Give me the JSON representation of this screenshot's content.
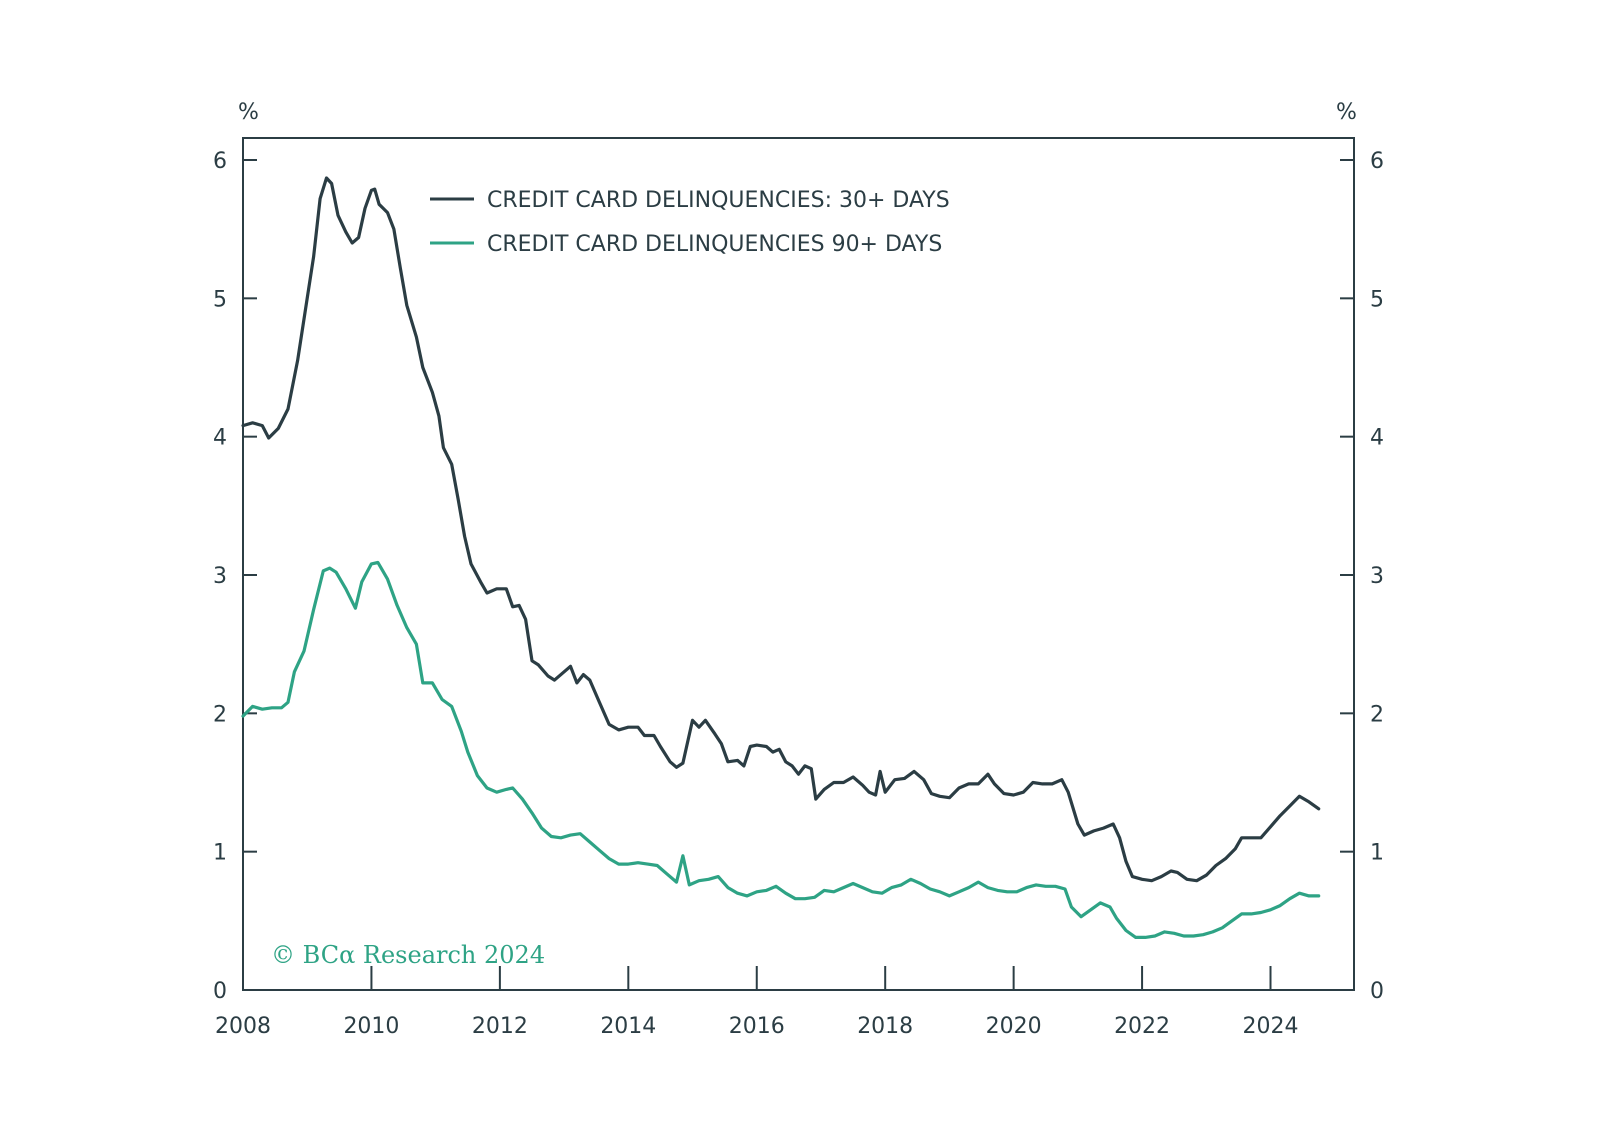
{
  "chart_data": {
    "type": "line",
    "title": "",
    "xlabel": "",
    "ylabel_left": "%",
    "ylabel_right": "%",
    "xlim": [
      2008,
      2025.3
    ],
    "ylim": [
      0,
      6
    ],
    "x_ticks": [
      "2008",
      "2010",
      "2012",
      "2014",
      "2016",
      "2018",
      "2020",
      "2022",
      "2024"
    ],
    "y_ticks": [
      "0",
      "1",
      "2",
      "3",
      "4",
      "5",
      "6"
    ],
    "grid": false,
    "legend_position": "top-left",
    "series": [
      {
        "name": "CREDIT CARD DELINQUENCIES: 30+ DAYS",
        "color": "#2b3d44",
        "points": [
          [
            2008.0,
            4.08
          ],
          [
            2008.15,
            4.1
          ],
          [
            2008.3,
            4.08
          ],
          [
            2008.4,
            3.99
          ],
          [
            2008.55,
            4.06
          ],
          [
            2008.7,
            4.2
          ],
          [
            2008.85,
            4.55
          ],
          [
            2009.0,
            5.0
          ],
          [
            2009.1,
            5.3
          ],
          [
            2009.2,
            5.72
          ],
          [
            2009.3,
            5.87
          ],
          [
            2009.38,
            5.83
          ],
          [
            2009.48,
            5.6
          ],
          [
            2009.6,
            5.48
          ],
          [
            2009.7,
            5.4
          ],
          [
            2009.8,
            5.44
          ],
          [
            2009.9,
            5.65
          ],
          [
            2010.0,
            5.78
          ],
          [
            2010.05,
            5.79
          ],
          [
            2010.12,
            5.68
          ],
          [
            2010.25,
            5.62
          ],
          [
            2010.35,
            5.5
          ],
          [
            2010.45,
            5.22
          ],
          [
            2010.55,
            4.95
          ],
          [
            2010.7,
            4.72
          ],
          [
            2010.8,
            4.5
          ],
          [
            2010.95,
            4.32
          ],
          [
            2011.05,
            4.15
          ],
          [
            2011.12,
            3.92
          ],
          [
            2011.25,
            3.8
          ],
          [
            2011.35,
            3.55
          ],
          [
            2011.45,
            3.28
          ],
          [
            2011.55,
            3.08
          ],
          [
            2011.7,
            2.95
          ],
          [
            2011.8,
            2.87
          ],
          [
            2011.95,
            2.9
          ],
          [
            2012.1,
            2.9
          ],
          [
            2012.2,
            2.77
          ],
          [
            2012.3,
            2.78
          ],
          [
            2012.4,
            2.68
          ],
          [
            2012.5,
            2.38
          ],
          [
            2012.6,
            2.35
          ],
          [
            2012.75,
            2.27
          ],
          [
            2012.85,
            2.24
          ],
          [
            2013.0,
            2.3
          ],
          [
            2013.1,
            2.34
          ],
          [
            2013.2,
            2.22
          ],
          [
            2013.3,
            2.28
          ],
          [
            2013.4,
            2.24
          ],
          [
            2013.55,
            2.08
          ],
          [
            2013.7,
            1.92
          ],
          [
            2013.85,
            1.88
          ],
          [
            2014.0,
            1.9
          ],
          [
            2014.15,
            1.9
          ],
          [
            2014.25,
            1.84
          ],
          [
            2014.4,
            1.84
          ],
          [
            2014.5,
            1.76
          ],
          [
            2014.65,
            1.65
          ],
          [
            2014.75,
            1.61
          ],
          [
            2014.85,
            1.64
          ],
          [
            2015.0,
            1.95
          ],
          [
            2015.1,
            1.9
          ],
          [
            2015.2,
            1.95
          ],
          [
            2015.35,
            1.85
          ],
          [
            2015.45,
            1.78
          ],
          [
            2015.55,
            1.65
          ],
          [
            2015.7,
            1.66
          ],
          [
            2015.8,
            1.62
          ],
          [
            2015.9,
            1.76
          ],
          [
            2016.0,
            1.77
          ],
          [
            2016.15,
            1.76
          ],
          [
            2016.25,
            1.72
          ],
          [
            2016.35,
            1.74
          ],
          [
            2016.45,
            1.65
          ],
          [
            2016.55,
            1.62
          ],
          [
            2016.65,
            1.56
          ],
          [
            2016.75,
            1.62
          ],
          [
            2016.85,
            1.6
          ],
          [
            2016.92,
            1.38
          ],
          [
            2017.05,
            1.45
          ],
          [
            2017.2,
            1.5
          ],
          [
            2017.35,
            1.5
          ],
          [
            2017.5,
            1.54
          ],
          [
            2017.65,
            1.48
          ],
          [
            2017.75,
            1.43
          ],
          [
            2017.85,
            1.41
          ],
          [
            2017.92,
            1.58
          ],
          [
            2018.0,
            1.43
          ],
          [
            2018.15,
            1.52
          ],
          [
            2018.3,
            1.53
          ],
          [
            2018.45,
            1.58
          ],
          [
            2018.6,
            1.52
          ],
          [
            2018.72,
            1.42
          ],
          [
            2018.85,
            1.4
          ],
          [
            2019.0,
            1.39
          ],
          [
            2019.15,
            1.46
          ],
          [
            2019.3,
            1.49
          ],
          [
            2019.45,
            1.49
          ],
          [
            2019.6,
            1.56
          ],
          [
            2019.7,
            1.49
          ],
          [
            2019.85,
            1.42
          ],
          [
            2020.0,
            1.41
          ],
          [
            2020.15,
            1.43
          ],
          [
            2020.3,
            1.5
          ],
          [
            2020.45,
            1.49
          ],
          [
            2020.6,
            1.49
          ],
          [
            2020.75,
            1.52
          ],
          [
            2020.85,
            1.43
          ],
          [
            2021.0,
            1.2
          ],
          [
            2021.1,
            1.12
          ],
          [
            2021.25,
            1.15
          ],
          [
            2021.4,
            1.17
          ],
          [
            2021.55,
            1.2
          ],
          [
            2021.65,
            1.1
          ],
          [
            2021.75,
            0.93
          ],
          [
            2021.85,
            0.82
          ],
          [
            2022.0,
            0.8
          ],
          [
            2022.15,
            0.79
          ],
          [
            2022.3,
            0.82
          ],
          [
            2022.45,
            0.86
          ],
          [
            2022.55,
            0.85
          ],
          [
            2022.7,
            0.8
          ],
          [
            2022.85,
            0.79
          ],
          [
            2023.0,
            0.83
          ],
          [
            2023.15,
            0.9
          ],
          [
            2023.3,
            0.95
          ],
          [
            2023.45,
            1.02
          ],
          [
            2023.55,
            1.1
          ],
          [
            2023.7,
            1.1
          ],
          [
            2023.85,
            1.1
          ],
          [
            2024.0,
            1.18
          ],
          [
            2024.15,
            1.26
          ],
          [
            2024.3,
            1.33
          ],
          [
            2024.45,
            1.4
          ],
          [
            2024.6,
            1.36
          ],
          [
            2024.75,
            1.31
          ]
        ]
      },
      {
        "name": "CREDIT CARD DELINQUENCIES 90+ DAYS",
        "color": "#2ea385",
        "points": [
          [
            2008.0,
            1.98
          ],
          [
            2008.15,
            2.05
          ],
          [
            2008.3,
            2.03
          ],
          [
            2008.45,
            2.04
          ],
          [
            2008.6,
            2.04
          ],
          [
            2008.7,
            2.08
          ],
          [
            2008.8,
            2.3
          ],
          [
            2008.95,
            2.45
          ],
          [
            2009.1,
            2.75
          ],
          [
            2009.25,
            3.03
          ],
          [
            2009.35,
            3.05
          ],
          [
            2009.45,
            3.02
          ],
          [
            2009.6,
            2.9
          ],
          [
            2009.75,
            2.76
          ],
          [
            2009.85,
            2.95
          ],
          [
            2010.0,
            3.08
          ],
          [
            2010.1,
            3.09
          ],
          [
            2010.25,
            2.97
          ],
          [
            2010.4,
            2.78
          ],
          [
            2010.55,
            2.62
          ],
          [
            2010.7,
            2.5
          ],
          [
            2010.8,
            2.22
          ],
          [
            2010.95,
            2.22
          ],
          [
            2011.1,
            2.1
          ],
          [
            2011.25,
            2.05
          ],
          [
            2011.4,
            1.87
          ],
          [
            2011.5,
            1.72
          ],
          [
            2011.65,
            1.55
          ],
          [
            2011.8,
            1.46
          ],
          [
            2011.95,
            1.43
          ],
          [
            2012.1,
            1.45
          ],
          [
            2012.2,
            1.46
          ],
          [
            2012.35,
            1.38
          ],
          [
            2012.5,
            1.28
          ],
          [
            2012.65,
            1.17
          ],
          [
            2012.8,
            1.11
          ],
          [
            2012.95,
            1.1
          ],
          [
            2013.1,
            1.12
          ],
          [
            2013.25,
            1.13
          ],
          [
            2013.4,
            1.07
          ],
          [
            2013.55,
            1.01
          ],
          [
            2013.7,
            0.95
          ],
          [
            2013.85,
            0.91
          ],
          [
            2014.0,
            0.91
          ],
          [
            2014.15,
            0.92
          ],
          [
            2014.3,
            0.91
          ],
          [
            2014.45,
            0.9
          ],
          [
            2014.6,
            0.84
          ],
          [
            2014.75,
            0.78
          ],
          [
            2014.85,
            0.97
          ],
          [
            2014.95,
            0.76
          ],
          [
            2015.1,
            0.79
          ],
          [
            2015.25,
            0.8
          ],
          [
            2015.4,
            0.82
          ],
          [
            2015.55,
            0.74
          ],
          [
            2015.7,
            0.7
          ],
          [
            2015.85,
            0.68
          ],
          [
            2016.0,
            0.71
          ],
          [
            2016.15,
            0.72
          ],
          [
            2016.3,
            0.75
          ],
          [
            2016.45,
            0.7
          ],
          [
            2016.6,
            0.66
          ],
          [
            2016.75,
            0.66
          ],
          [
            2016.9,
            0.67
          ],
          [
            2017.05,
            0.72
          ],
          [
            2017.2,
            0.71
          ],
          [
            2017.35,
            0.74
          ],
          [
            2017.5,
            0.77
          ],
          [
            2017.65,
            0.74
          ],
          [
            2017.8,
            0.71
          ],
          [
            2017.95,
            0.7
          ],
          [
            2018.1,
            0.74
          ],
          [
            2018.25,
            0.76
          ],
          [
            2018.4,
            0.8
          ],
          [
            2018.55,
            0.77
          ],
          [
            2018.7,
            0.73
          ],
          [
            2018.85,
            0.71
          ],
          [
            2019.0,
            0.68
          ],
          [
            2019.15,
            0.71
          ],
          [
            2019.3,
            0.74
          ],
          [
            2019.45,
            0.78
          ],
          [
            2019.6,
            0.74
          ],
          [
            2019.75,
            0.72
          ],
          [
            2019.9,
            0.71
          ],
          [
            2020.05,
            0.71
          ],
          [
            2020.2,
            0.74
          ],
          [
            2020.35,
            0.76
          ],
          [
            2020.5,
            0.75
          ],
          [
            2020.65,
            0.75
          ],
          [
            2020.8,
            0.73
          ],
          [
            2020.9,
            0.6
          ],
          [
            2021.05,
            0.53
          ],
          [
            2021.2,
            0.58
          ],
          [
            2021.35,
            0.63
          ],
          [
            2021.5,
            0.6
          ],
          [
            2021.6,
            0.52
          ],
          [
            2021.75,
            0.43
          ],
          [
            2021.9,
            0.38
          ],
          [
            2022.05,
            0.38
          ],
          [
            2022.2,
            0.39
          ],
          [
            2022.35,
            0.42
          ],
          [
            2022.5,
            0.41
          ],
          [
            2022.65,
            0.39
          ],
          [
            2022.8,
            0.39
          ],
          [
            2022.95,
            0.4
          ],
          [
            2023.1,
            0.42
          ],
          [
            2023.25,
            0.45
          ],
          [
            2023.4,
            0.5
          ],
          [
            2023.55,
            0.55
          ],
          [
            2023.7,
            0.55
          ],
          [
            2023.85,
            0.56
          ],
          [
            2024.0,
            0.58
          ],
          [
            2024.15,
            0.61
          ],
          [
            2024.3,
            0.66
          ],
          [
            2024.45,
            0.7
          ],
          [
            2024.6,
            0.68
          ],
          [
            2024.75,
            0.68
          ]
        ]
      }
    ]
  },
  "watermark": {
    "text": "© BCα Research 2024",
    "color": "#2ea385"
  }
}
